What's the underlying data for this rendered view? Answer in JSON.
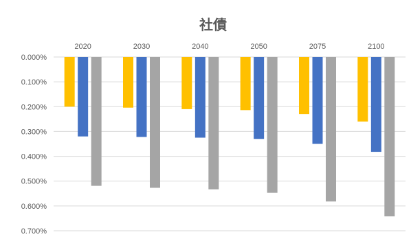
{
  "chart_data": {
    "type": "bar",
    "title": "社債",
    "xlabel": "",
    "ylabel": "",
    "categories": [
      "2020",
      "2030",
      "2040",
      "2050",
      "2075",
      "2100"
    ],
    "series": [
      {
        "color": "#FFC000",
        "values": [
          0.2,
          0.204,
          0.21,
          0.214,
          0.23,
          0.26
        ]
      },
      {
        "color": "#4472C4",
        "values": [
          0.32,
          0.322,
          0.325,
          0.33,
          0.35,
          0.382
        ]
      },
      {
        "color": "#A5A5A5",
        "values": [
          0.519,
          0.527,
          0.533,
          0.547,
          0.582,
          0.642
        ]
      }
    ],
    "ylim": [
      0,
      0.7
    ],
    "y_axis_inverted": true,
    "y_tick_labels": [
      "0.000%",
      "0.100%",
      "0.200%",
      "0.300%",
      "0.400%",
      "0.500%",
      "0.600%",
      "0.700%"
    ],
    "grid": true,
    "legend": "none",
    "category_labels_position": "top"
  }
}
